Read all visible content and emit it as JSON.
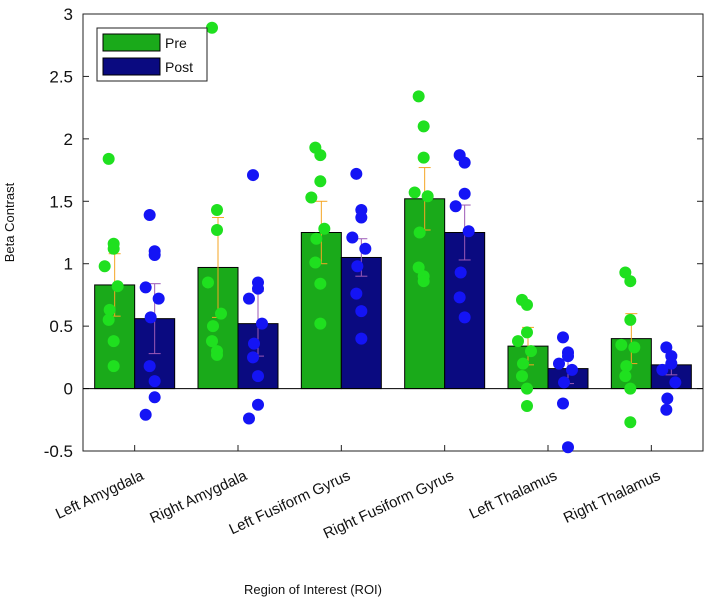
{
  "chart_data": {
    "type": "bar",
    "title": "",
    "xlabel": "Region of Interest (ROI)",
    "ylabel": "Beta Contrast",
    "ylim": [
      -0.5,
      3
    ],
    "yticks": [
      -0.5,
      0,
      0.5,
      1,
      1.5,
      2,
      2.5,
      3
    ],
    "ytick_labels": [
      "-0.5",
      "0",
      "0.5",
      "1",
      "1.5",
      "2",
      "2.5",
      "3"
    ],
    "categories": [
      "Left Amygdala",
      "Right Amygdala",
      "Left Fusiform Gyrus",
      "Right Fusiform Gyrus",
      "Left Thalamus",
      "Right Thalamus"
    ],
    "legend_position": "top-left",
    "series": [
      {
        "name": "Pre",
        "bar_color": "#1aaa1a",
        "point_color": "#1fe01f",
        "errorbar_color": "#f5a623",
        "values": [
          0.83,
          0.97,
          1.25,
          1.52,
          0.34,
          0.4
        ],
        "errors": [
          0.25,
          0.4,
          0.25,
          0.25,
          0.15,
          0.2
        ],
        "points": [
          [
            1.84,
            1.16,
            1.12,
            0.98,
            0.82,
            0.63,
            0.55,
            0.38,
            0.18
          ],
          [
            2.89,
            1.43,
            1.27,
            0.85,
            0.6,
            0.5,
            0.38,
            0.3,
            0.27
          ],
          [
            1.93,
            1.87,
            1.66,
            1.53,
            1.28,
            1.2,
            1.01,
            0.84,
            0.52
          ],
          [
            2.34,
            2.1,
            1.85,
            1.57,
            1.54,
            1.25,
            0.97,
            0.9,
            0.86
          ],
          [
            0.71,
            0.67,
            0.45,
            0.38,
            0.3,
            0.2,
            0.1,
            0.0,
            -0.14
          ],
          [
            0.93,
            0.86,
            0.55,
            0.35,
            0.33,
            0.18,
            0.1,
            0.0,
            -0.27
          ]
        ]
      },
      {
        "name": "Post",
        "bar_color": "#0a0a80",
        "point_color": "#1414f5",
        "errorbar_color": "#9b59b6",
        "values": [
          0.56,
          0.52,
          1.05,
          1.25,
          0.16,
          0.19
        ],
        "errors": [
          0.28,
          0.26,
          0.15,
          0.22,
          0.12,
          0.08
        ],
        "points": [
          [
            1.39,
            1.1,
            1.07,
            0.81,
            0.72,
            0.57,
            0.18,
            0.06,
            -0.07,
            -0.21
          ],
          [
            1.71,
            0.85,
            0.8,
            0.72,
            0.52,
            0.36,
            0.25,
            0.1,
            -0.13,
            -0.24
          ],
          [
            1.72,
            1.43,
            1.37,
            1.21,
            1.12,
            0.98,
            0.76,
            0.62,
            0.4
          ],
          [
            1.87,
            1.81,
            1.56,
            1.46,
            1.26,
            0.93,
            0.73,
            0.57
          ],
          [
            0.41,
            0.29,
            0.26,
            0.2,
            0.15,
            0.05,
            -0.12,
            -0.47
          ],
          [
            0.33,
            0.26,
            0.2,
            0.15,
            0.05,
            -0.08,
            -0.17
          ]
        ]
      }
    ]
  }
}
